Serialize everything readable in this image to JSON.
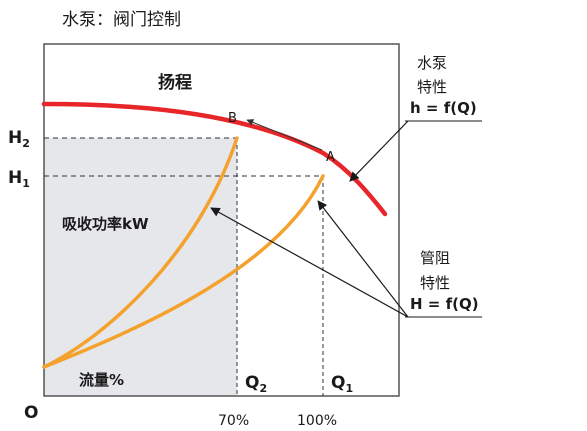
{
  "title": "水泵：阀门控制",
  "head_label": "扬程",
  "power_label": "吸收功率kW",
  "flow_label": "流量%",
  "origin_label": "O",
  "y_axis": {
    "h2_main": "H",
    "h2_sub": "2",
    "h1_main": "H",
    "h1_sub": "1"
  },
  "x_axis": {
    "q2_main": "Q",
    "q2_sub": "2",
    "q1_main": "Q",
    "q1_sub": "1",
    "tick_70": "70%",
    "tick_100": "100%"
  },
  "points": {
    "a": "A",
    "b": "B"
  },
  "pump_note": {
    "line1": "水泵",
    "line2": "特性",
    "formula": "h = f(Q)"
  },
  "pipe_note": {
    "line1": "管阻",
    "line2": "特性",
    "formula": "H = f(Q)"
  },
  "colors": {
    "pump_curve": "#e8262a",
    "system_curve": "#f4a12e",
    "shading": "#e6e7ea",
    "frame": "#555555"
  }
}
